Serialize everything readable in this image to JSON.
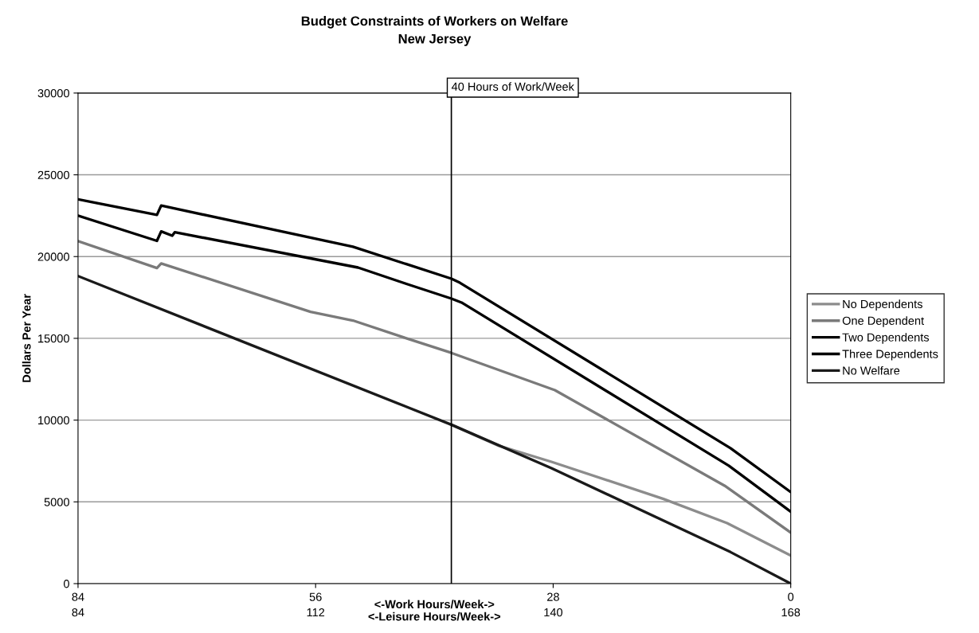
{
  "chart_data": {
    "type": "line",
    "title": "Budget Constraints of Workers on Welfare",
    "subtitle": "New Jersey",
    "xlabel": "<-Work Hours/Week->",
    "ylabel": "Dollars Per Year",
    "x2label": "<-Leisure Hours/Week->",
    "xlim": [
      84,
      0
    ],
    "xticks": [
      84,
      56,
      28,
      0
    ],
    "x2lim": [
      84,
      168
    ],
    "x2ticks": [
      84,
      112,
      140,
      168
    ],
    "ylim": [
      0,
      30000
    ],
    "yticks": [
      0,
      5000,
      10000,
      15000,
      20000,
      25000,
      30000
    ],
    "grid": "y",
    "legend": "right",
    "line_style": "solid",
    "marker": "none",
    "ref_lines": [
      {
        "axis": "x",
        "value": 40,
        "label": "40 Hours of Work/Week",
        "color": "#000000"
      }
    ],
    "series": [
      {
        "name": "No Dependents",
        "color": "#8c8c8c",
        "x": [
          40,
          34.4,
          28.2,
          15,
          7.5,
          0
        ],
        "values": [
          9720,
          8430,
          7450,
          5180,
          3700,
          1720
        ]
      },
      {
        "name": "One Dependent",
        "color": "#7a7a7a",
        "x": [
          84,
          74.7,
          74.2,
          56.6,
          51.6,
          45.3,
          40,
          27.8,
          7.8,
          0
        ],
        "values": [
          20940,
          19300,
          19580,
          16620,
          16090,
          15000,
          14110,
          11830,
          5990,
          3120
        ]
      },
      {
        "name": "Two Dependents",
        "color": "#000000",
        "x": [
          84,
          74.7,
          74.2,
          72.9,
          72.6,
          51,
          45.3,
          40,
          38.8,
          7.3,
          0
        ],
        "values": [
          22500,
          20960,
          21540,
          21280,
          21490,
          19330,
          18330,
          17430,
          17190,
          7210,
          4400
        ]
      },
      {
        "name": "Three Dependents",
        "color": "#000000",
        "x": [
          84,
          74.7,
          74.2,
          51.6,
          45.3,
          40,
          39,
          7.1,
          0
        ],
        "values": [
          23500,
          22550,
          23120,
          20600,
          19540,
          18650,
          18400,
          8280,
          5600
        ]
      },
      {
        "name": "No Welfare",
        "color": "#1a1a1a",
        "x": [
          84,
          40,
          28.2,
          7.1,
          0
        ],
        "values": [
          18810,
          9720,
          7060,
          1930,
          0
        ]
      }
    ]
  }
}
